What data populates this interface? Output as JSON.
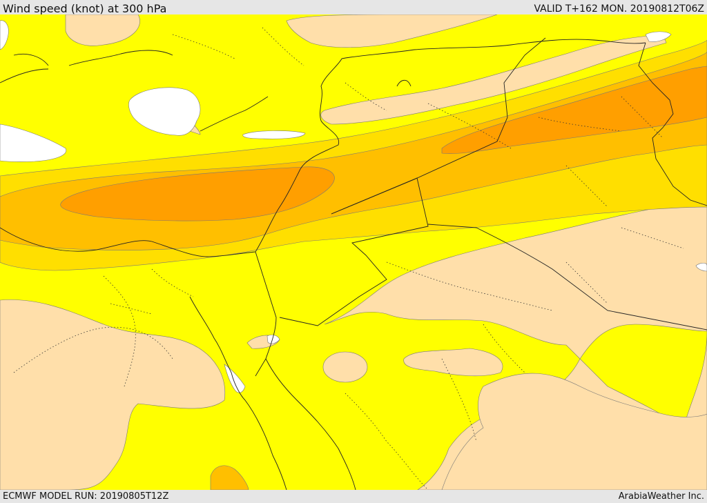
{
  "header": {
    "title": "Wind speed (knot) at 300 hPa",
    "valid": "VALID T+162 MON. 20190812T06Z"
  },
  "footer": {
    "model_run": "ECMWF MODEL RUN: 20190805T12Z",
    "credit": "ArabiaWeather Inc."
  },
  "colors": {
    "light": "#ffffff",
    "yellow": "#ffff00",
    "wheat": "#ffdfaa",
    "gold": "#ffdf00",
    "amber": "#ffbf00",
    "orange": "#ff9f00",
    "bar": "#e6e6e6"
  }
}
